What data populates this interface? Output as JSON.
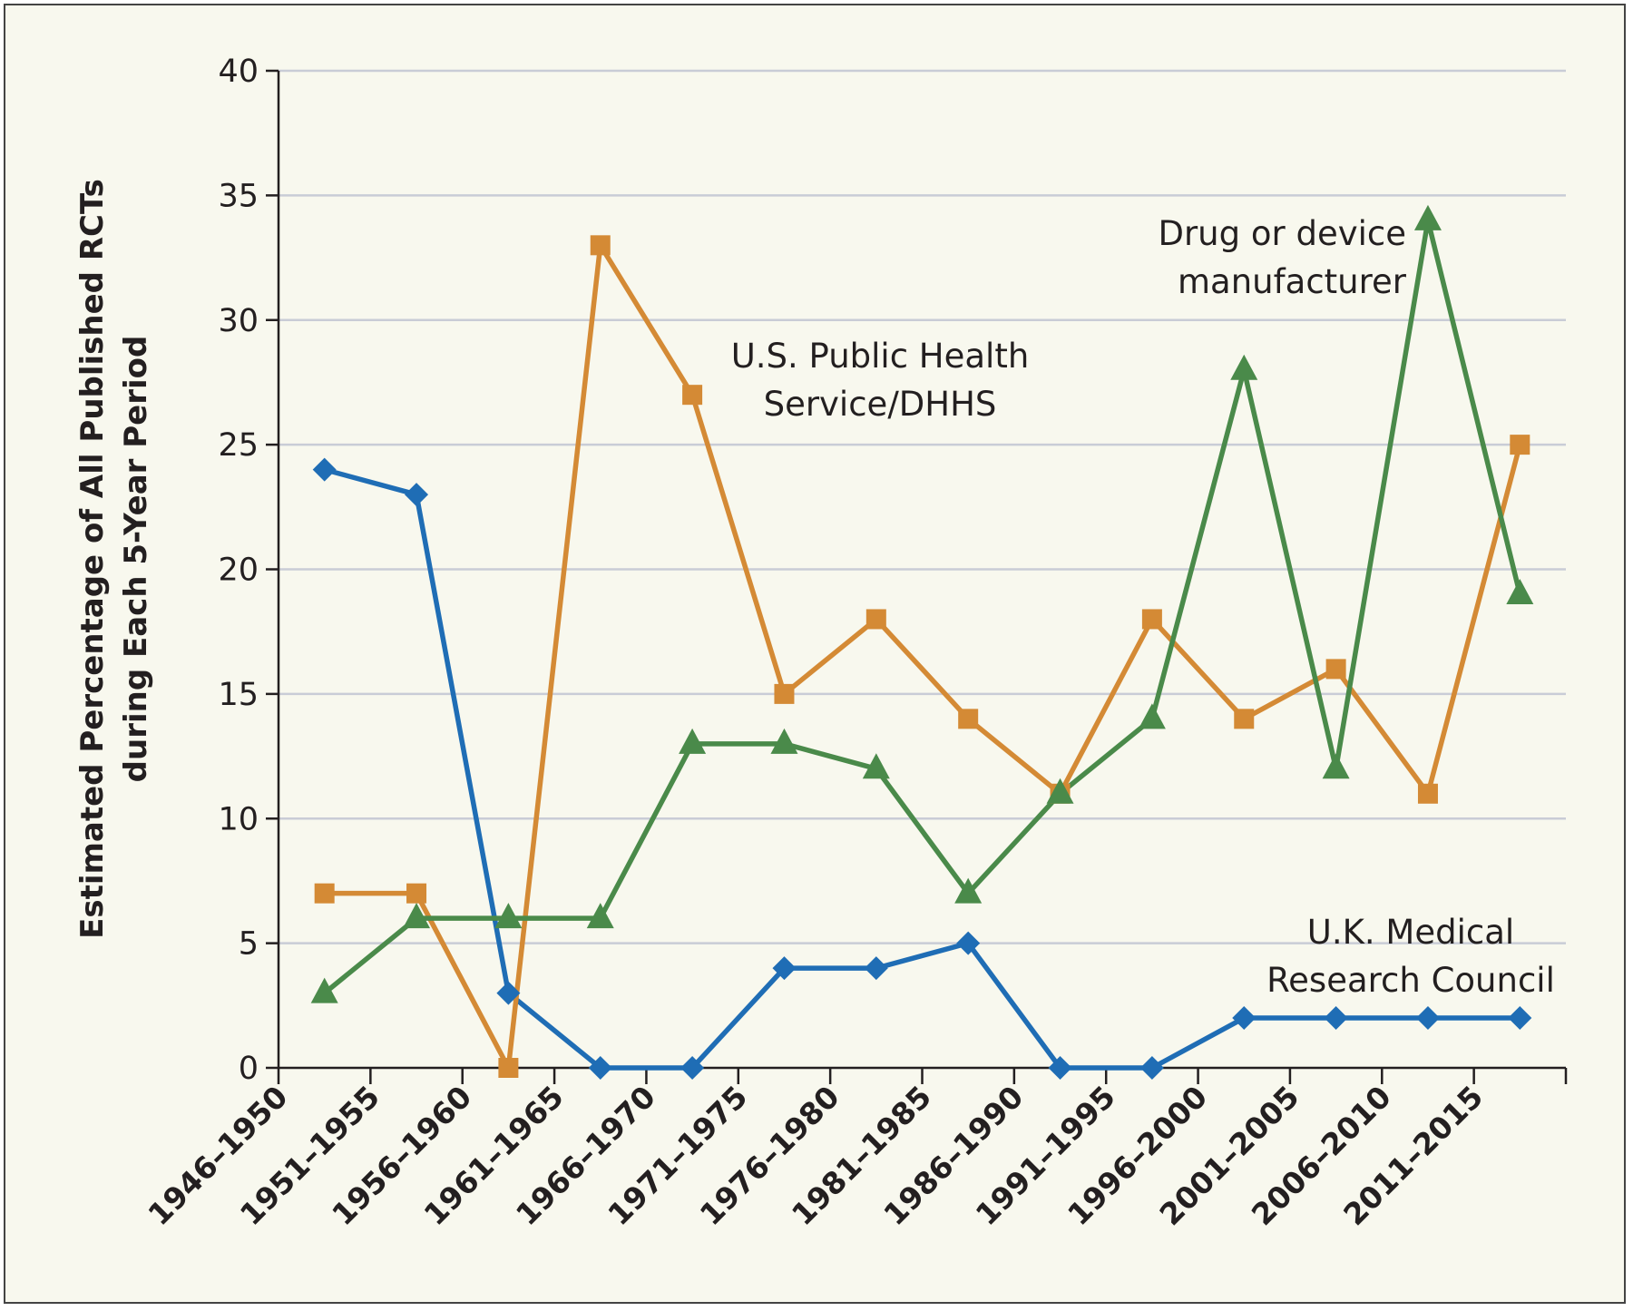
{
  "chart_data": {
    "type": "line",
    "title": "",
    "xlabel": "",
    "ylabel_lines": [
      "Estimated Percentage of All Published RCTs",
      "during Each 5-Year Period"
    ],
    "ylim": [
      0,
      40
    ],
    "yticks": [
      0,
      5,
      10,
      15,
      20,
      25,
      30,
      35,
      40
    ],
    "y_tick_labels": [
      "0",
      "5",
      "10",
      "15",
      "20",
      "25",
      "30",
      "35",
      "40"
    ],
    "grid": true,
    "categories": [
      "1946–1950",
      "1951–1955",
      "1956–1960",
      "1961–1965",
      "1966–1970",
      "1971–1975",
      "1976–1980",
      "1981–1985",
      "1986–1990",
      "1991–1995",
      "1996–2000",
      "2001–2005",
      "2006–2010",
      "2011–2015"
    ],
    "series": [
      {
        "key": "uk_mrc",
        "name_lines": [
          "U.K. Medical",
          "Research Council"
        ],
        "marker": "diamond",
        "color": "#1f6db5",
        "values": [
          24,
          23,
          3,
          0,
          0,
          4,
          4,
          5,
          0,
          0,
          2,
          2,
          2,
          2
        ]
      },
      {
        "key": "us_phs",
        "name_lines": [
          "U.S. Public Health",
          "Service/DHHS"
        ],
        "marker": "square",
        "color": "#d48a35",
        "values": [
          7,
          7,
          0,
          33,
          27,
          15,
          18,
          14,
          11,
          18,
          14,
          16,
          11,
          25
        ]
      },
      {
        "key": "drug_device",
        "name_lines": [
          "Drug or device",
          "manufacturer"
        ],
        "marker": "triangle",
        "color": "#4a8a4a",
        "values": [
          3,
          6,
          6,
          6,
          13,
          13,
          12,
          7,
          11,
          14,
          28,
          12,
          34,
          19
        ]
      }
    ]
  }
}
